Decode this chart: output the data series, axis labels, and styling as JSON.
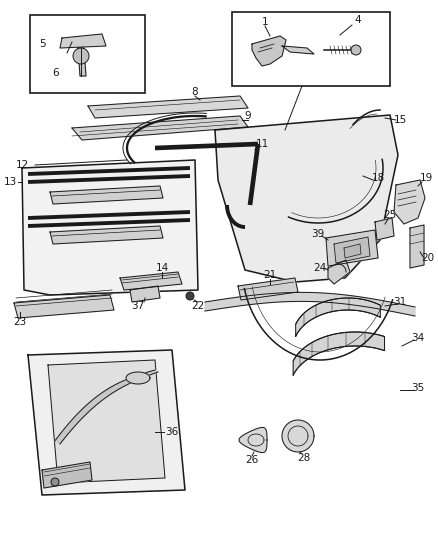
{
  "bg_color": "#ffffff",
  "line_color": "#1a1a1a",
  "label_color": "#1a1a1a",
  "figsize": [
    4.38,
    5.33
  ],
  "dpi": 100,
  "lw_thin": 0.7,
  "lw_med": 1.1,
  "lw_thick": 2.8,
  "label_fs": 7.5
}
